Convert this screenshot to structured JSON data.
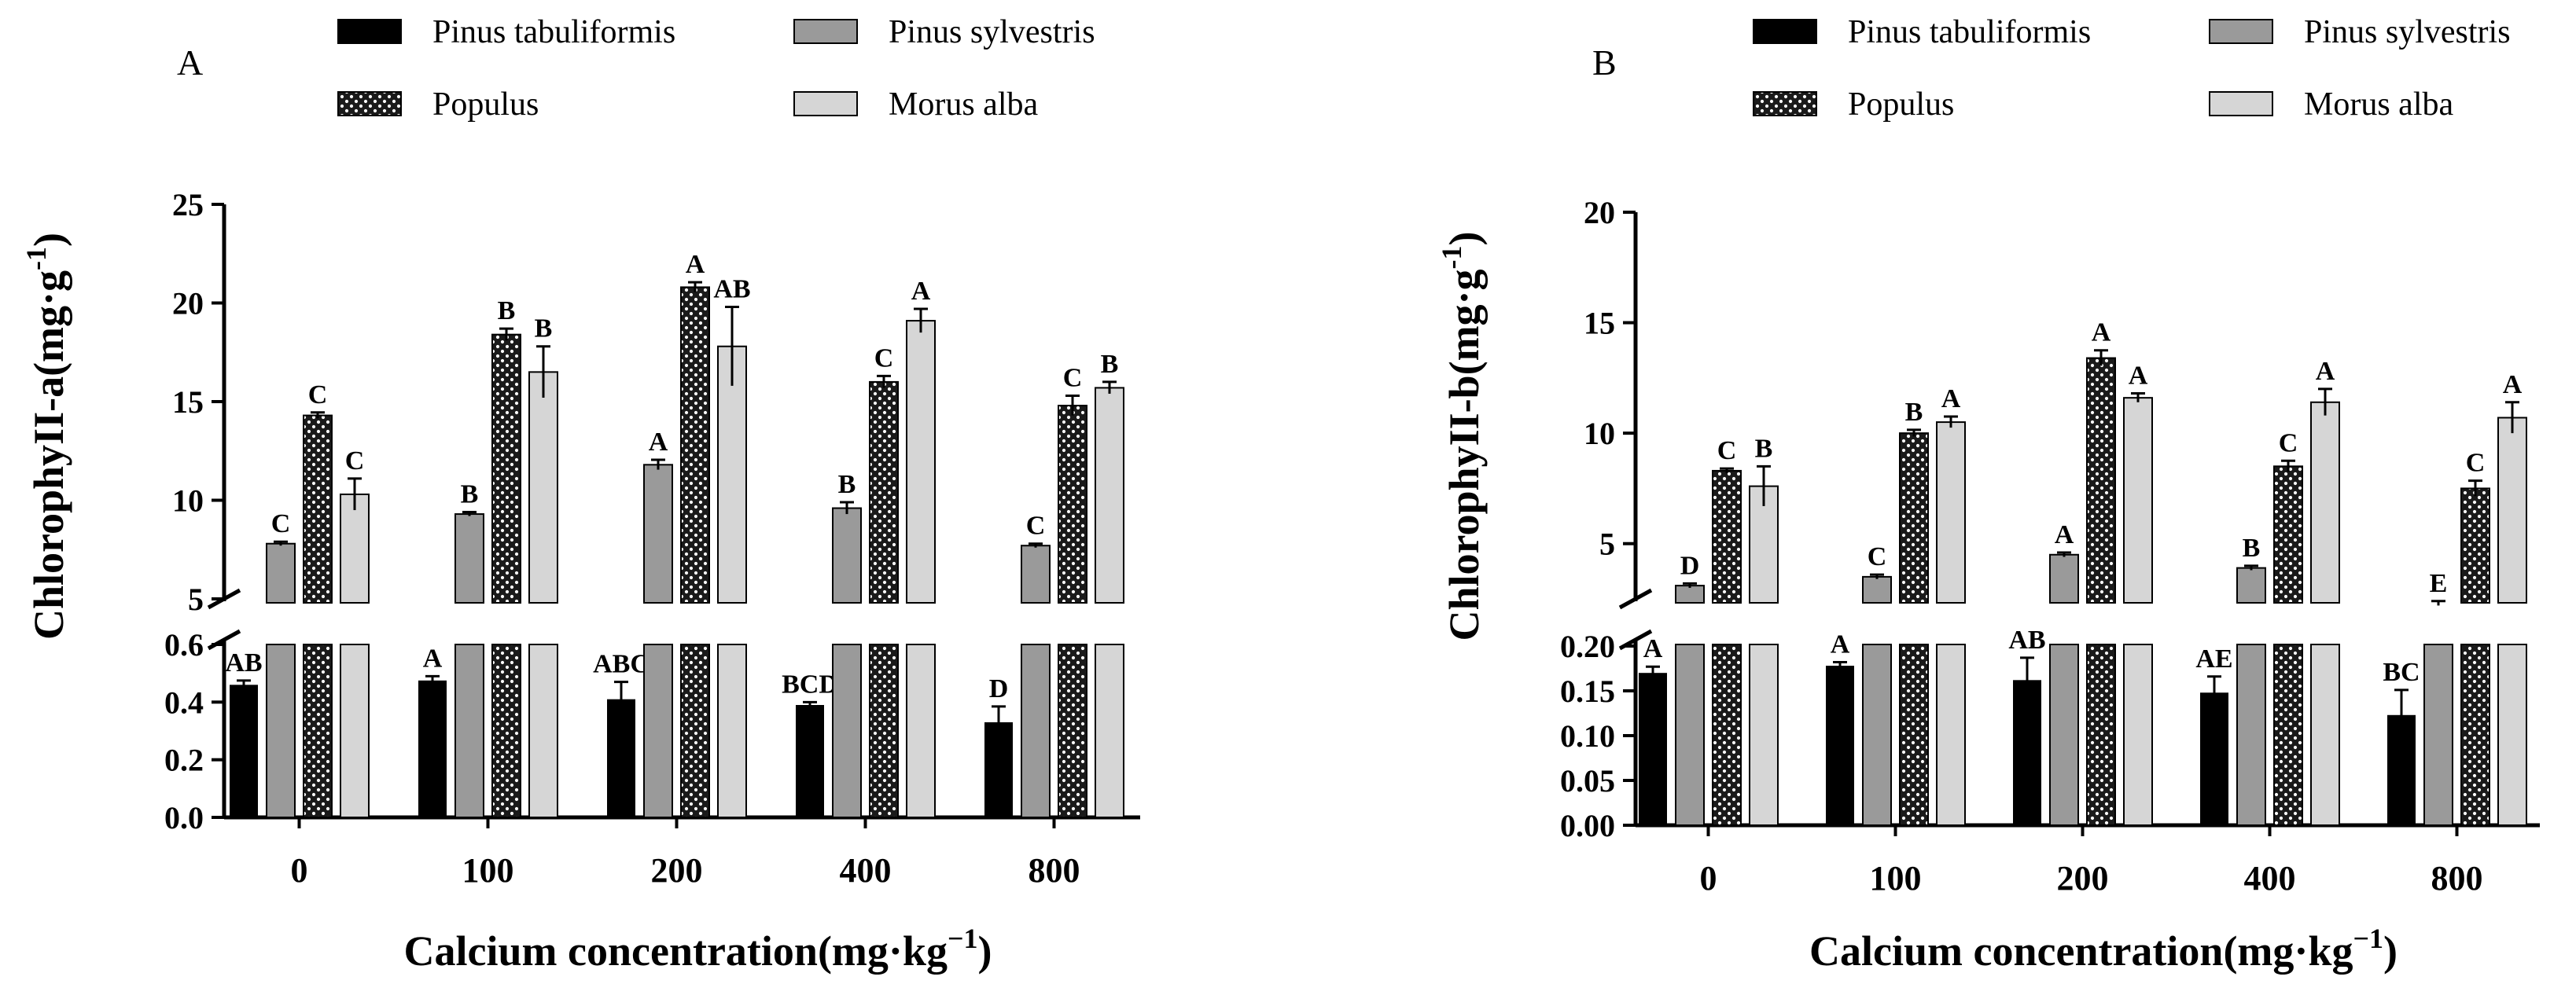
{
  "legend": {
    "items": [
      {
        "label": "Pinus tabuliformis",
        "style": "black"
      },
      {
        "label": "Pinus sylvestris",
        "style": "gray"
      },
      {
        "label": "Populus",
        "style": "dotted"
      },
      {
        "label": "Morus alba",
        "style": "light"
      }
    ]
  },
  "colors": {
    "black": "#000000",
    "gray": "#9a9a9a",
    "dotted_bg": "#1a1a1a",
    "dotted_fg": "#ffffff",
    "light": "#d6d6d6"
  },
  "chart_data": [
    {
      "panel": "A",
      "type": "bar",
      "title": "",
      "xlabel": "Calcium concentration(mg·kg",
      "xlabel_sup": "−1",
      "xlabel_end": ")",
      "ylabel": "ChlorophyII-a(mg·g",
      "ylabel_sup": "-1",
      "ylabel_end": ")",
      "categories": [
        "0",
        "100",
        "200",
        "400",
        "800"
      ],
      "lower_axis": {
        "ylim": [
          0,
          0.6
        ],
        "ticks": [
          "0.0",
          "0.2",
          "0.4",
          "0.6"
        ],
        "tick_values": [
          0,
          0.2,
          0.4,
          0.6
        ]
      },
      "upper_axis": {
        "ylim": [
          5,
          25
        ],
        "ticks": [
          "5",
          "10",
          "15",
          "20",
          "25"
        ],
        "tick_values": [
          5,
          10,
          15,
          20,
          25
        ]
      },
      "series": [
        {
          "name": "Pinus tabuliformis",
          "axis": "lower",
          "values": [
            0.46,
            0.475,
            0.41,
            0.39,
            0.33
          ],
          "errors": [
            0.015,
            0.015,
            0.06,
            0.01,
            0.055
          ],
          "letters": [
            "AB",
            "A",
            "ABC",
            "BCD",
            "D"
          ]
        },
        {
          "name": "Pinus sylvestris",
          "axis": "upper",
          "values": [
            7.8,
            9.3,
            11.8,
            9.6,
            7.7
          ],
          "errors": [
            0.1,
            0.1,
            0.25,
            0.3,
            0.1
          ],
          "letters": [
            "C",
            "B",
            "A",
            "B",
            "C"
          ]
        },
        {
          "name": "Populus",
          "axis": "upper",
          "values": [
            14.3,
            18.4,
            20.8,
            16.0,
            14.8
          ],
          "errors": [
            0.15,
            0.3,
            0.25,
            0.3,
            0.5
          ],
          "letters": [
            "C",
            "B",
            "A",
            "C",
            "C"
          ]
        },
        {
          "name": "Morus alba",
          "axis": "upper",
          "values": [
            10.3,
            16.5,
            17.8,
            19.1,
            15.7
          ],
          "errors": [
            0.8,
            1.3,
            2.0,
            0.6,
            0.3
          ],
          "letters": [
            "C",
            "B",
            "AB",
            "A",
            "B"
          ]
        }
      ]
    },
    {
      "panel": "B",
      "type": "bar",
      "title": "",
      "xlabel": "Calcium concentration(mg·kg",
      "xlabel_sup": "−1",
      "xlabel_end": ")",
      "ylabel": "ChlorophyII-b(mg·g",
      "ylabel_sup": "-1",
      "ylabel_end": ")",
      "categories": [
        "0",
        "100",
        "200",
        "400",
        "800"
      ],
      "lower_axis": {
        "ylim": [
          0,
          0.2
        ],
        "ticks": [
          "0.00",
          "0.05",
          "0.10",
          "0.15",
          "0.20"
        ],
        "tick_values": [
          0,
          0.05,
          0.1,
          0.15,
          0.2
        ]
      },
      "upper_axis": {
        "ylim": [
          2.5,
          20
        ],
        "ticks": [
          "5",
          "10",
          "15",
          "20"
        ],
        "tick_values": [
          5,
          10,
          15,
          20
        ]
      },
      "series": [
        {
          "name": "Pinus tabuliformis",
          "axis": "lower",
          "values": [
            0.17,
            0.178,
            0.162,
            0.148,
            0.123
          ],
          "errors": [
            0.007,
            0.004,
            0.025,
            0.018,
            0.028
          ],
          "letters": [
            "A",
            "A",
            "AB",
            "AE",
            "BC"
          ]
        },
        {
          "name": "Pinus sylvestris",
          "axis": "upper",
          "values": [
            3.1,
            3.5,
            4.5,
            3.9,
            2.3
          ],
          "errors": [
            0.1,
            0.1,
            0.1,
            0.1,
            0.1
          ],
          "letters": [
            "D",
            "C",
            "A",
            "B",
            "E"
          ]
        },
        {
          "name": "Populus",
          "axis": "upper",
          "values": [
            8.3,
            10.0,
            13.4,
            8.5,
            7.5
          ],
          "errors": [
            0.1,
            0.15,
            0.35,
            0.25,
            0.35
          ],
          "letters": [
            "C",
            "B",
            "A",
            "C",
            "C"
          ]
        },
        {
          "name": "Morus alba",
          "axis": "upper",
          "values": [
            7.6,
            10.5,
            11.6,
            11.4,
            10.7
          ],
          "errors": [
            0.9,
            0.25,
            0.2,
            0.6,
            0.7
          ],
          "letters": [
            "B",
            "A",
            "A",
            "A",
            "A"
          ]
        }
      ]
    }
  ]
}
